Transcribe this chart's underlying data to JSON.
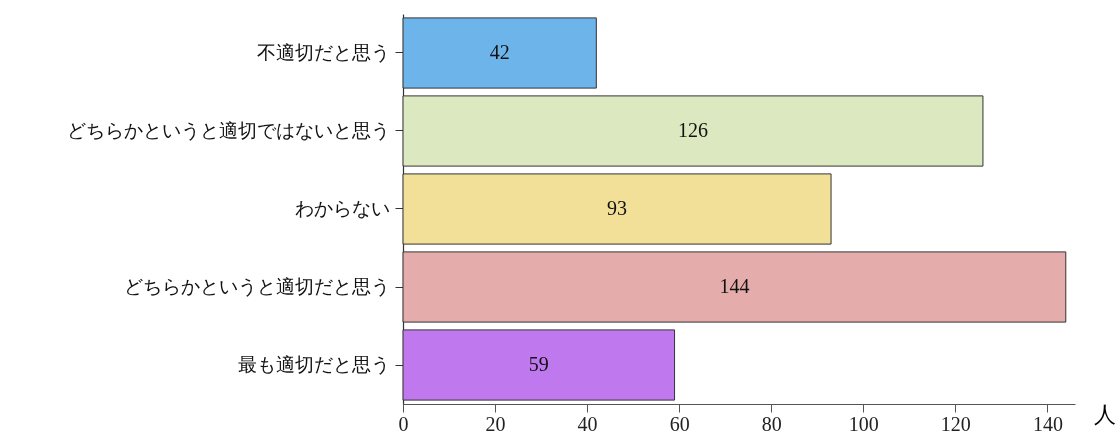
{
  "chart_data": {
    "type": "bar",
    "orientation": "horizontal",
    "xlabel": "人",
    "categories": [
      "不適切だと思う",
      "どちらかというと適切ではないと思う",
      "わからない",
      "どちらかというと適切だと思う",
      "最も適切だと思う"
    ],
    "values": [
      42,
      126,
      93,
      144,
      59
    ],
    "colors": [
      "#6cb4ea",
      "#dce9c0",
      "#f2df98",
      "#e4adab",
      "#c078ee"
    ],
    "xlim": [
      0,
      146
    ],
    "xticks": [
      0,
      20,
      40,
      60,
      80,
      100,
      120,
      140
    ],
    "data_labels": true,
    "grid": false
  }
}
